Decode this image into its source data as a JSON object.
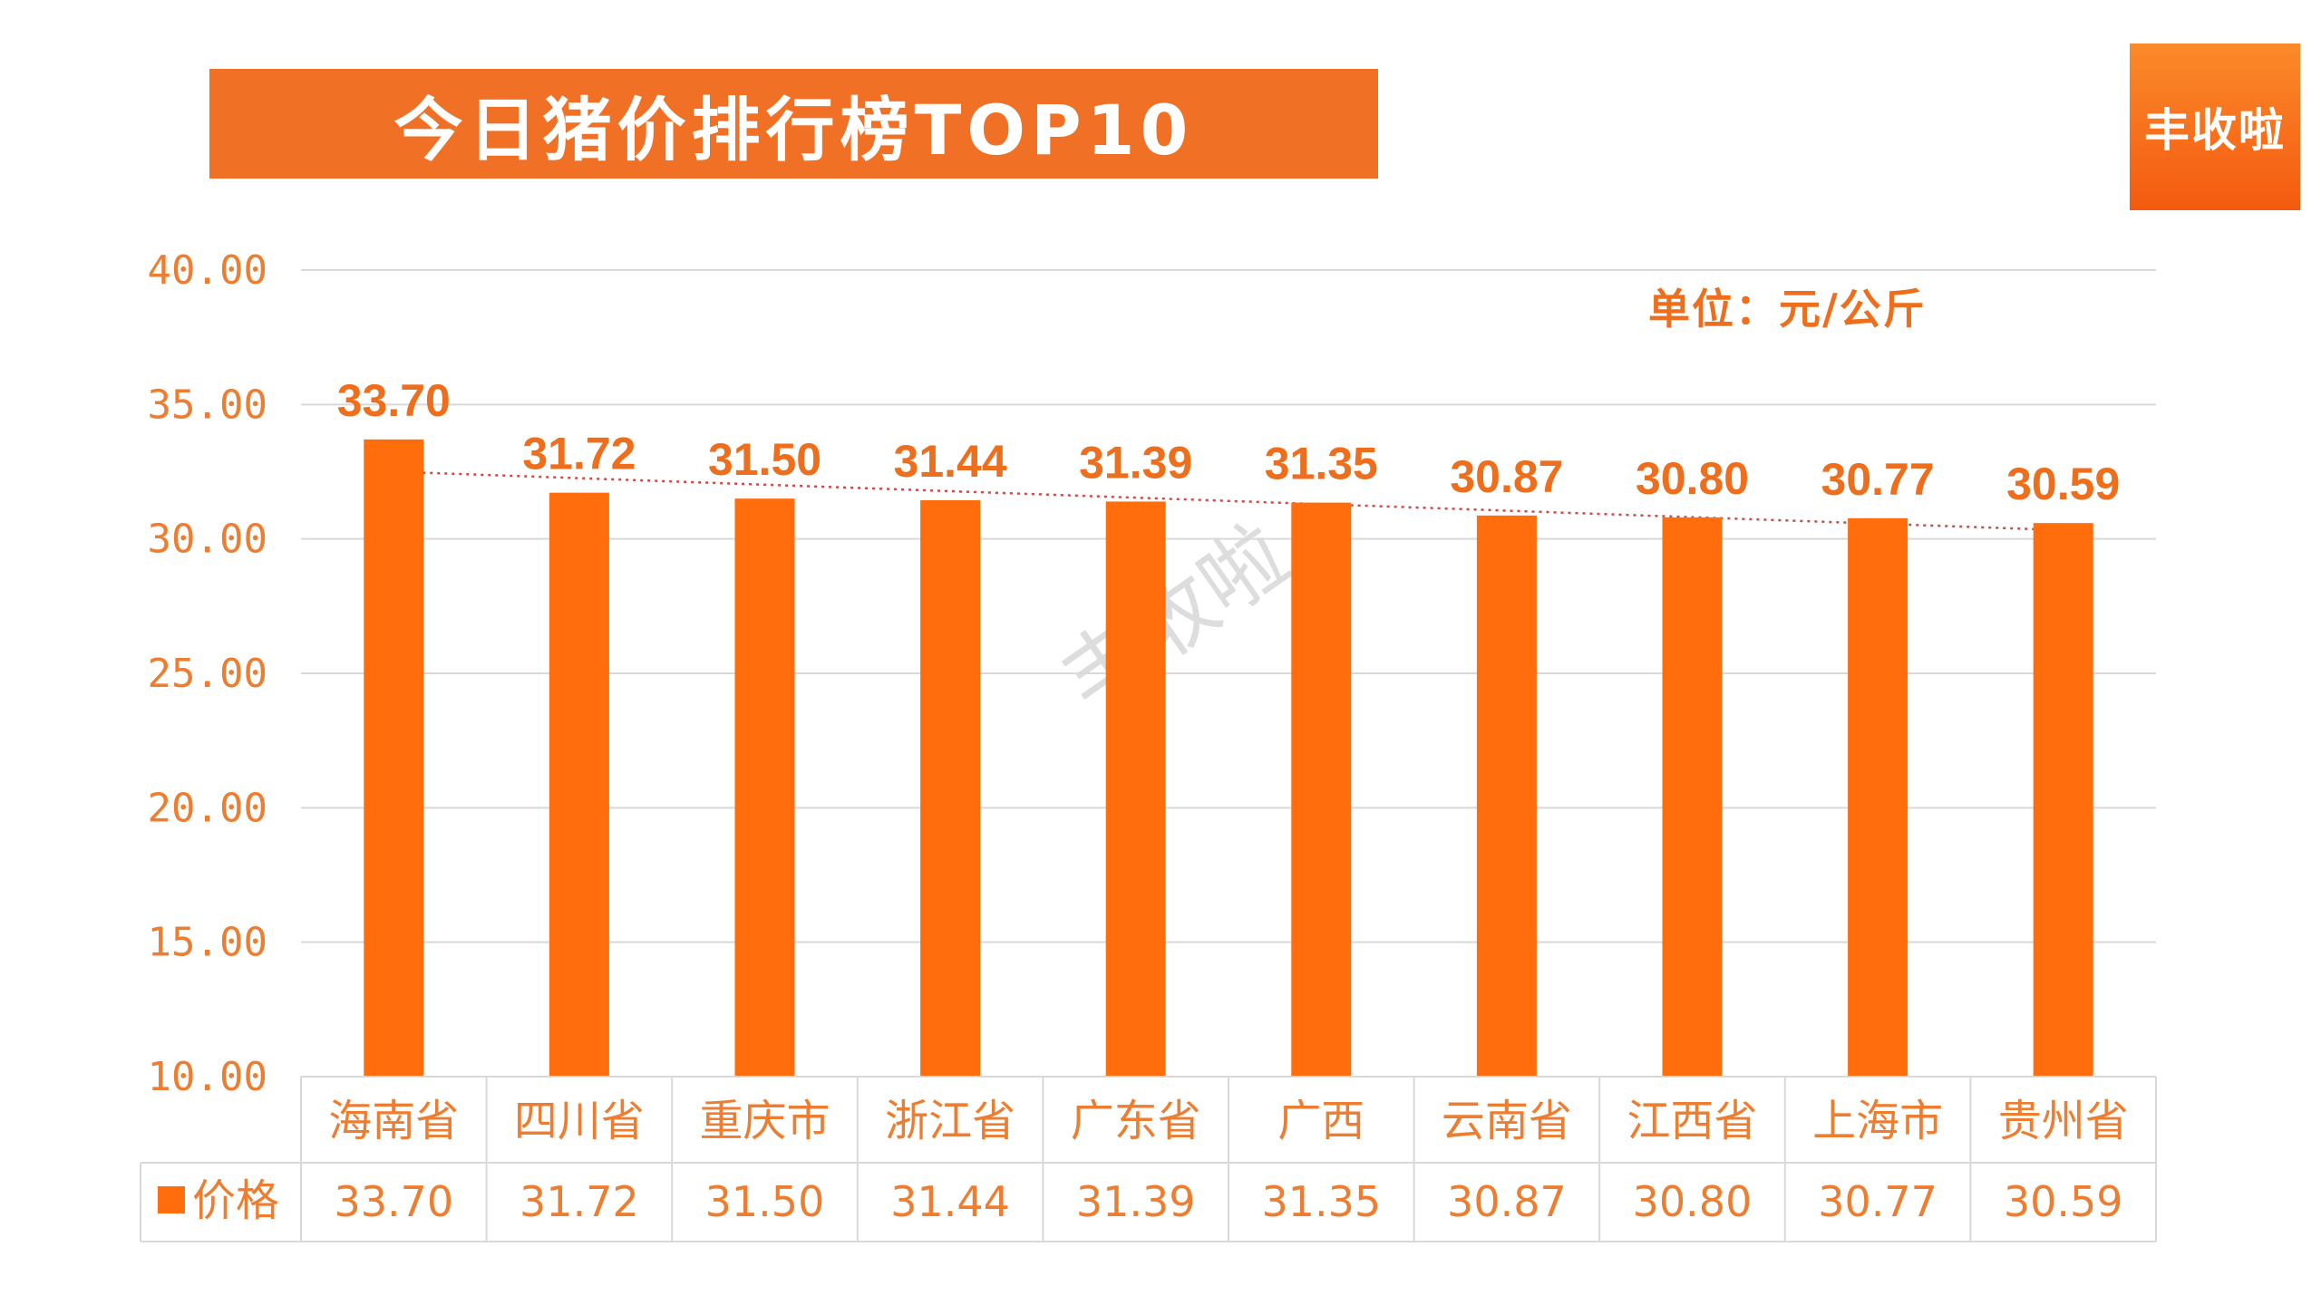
{
  "header": {
    "title": "今日猪价排行榜TOP10",
    "brand": "丰收啦",
    "unit": "单位：元/公斤",
    "watermark": "丰收啦"
  },
  "colors": {
    "bar": "#FF6D0D",
    "title_bg": "#F07025",
    "axis_text": "#ED7D31",
    "label_text": "#ED6F1E",
    "grid": "#D9D9D9",
    "trendline": "#C0504D"
  },
  "chart_data": {
    "type": "bar",
    "title": "今日猪价排行榜TOP10",
    "categories": [
      "海南省",
      "四川省",
      "重庆市",
      "浙江省",
      "广东省",
      "广西",
      "云南省",
      "江西省",
      "上海市",
      "贵州省"
    ],
    "series": [
      {
        "name": "价格",
        "values": [
          33.7,
          31.72,
          31.5,
          31.44,
          31.39,
          31.35,
          30.87,
          30.8,
          30.77,
          30.59
        ],
        "value_labels": [
          "33.70",
          "31.72",
          "31.50",
          "31.44",
          "31.39",
          "31.35",
          "30.87",
          "30.80",
          "30.77",
          "30.59"
        ]
      }
    ],
    "ylim": [
      10,
      40
    ],
    "y_ticks": [
      10,
      15,
      20,
      25,
      30,
      35,
      40
    ],
    "y_tick_labels": [
      "10.00",
      "15.00",
      "20.00",
      "25.00",
      "30.00",
      "35.00",
      "40.00"
    ],
    "xlabel": "",
    "ylabel": "",
    "unit": "单位：元/公斤",
    "grid": true,
    "trendline": "linear",
    "data_table": true,
    "legend_entry": "价格"
  }
}
